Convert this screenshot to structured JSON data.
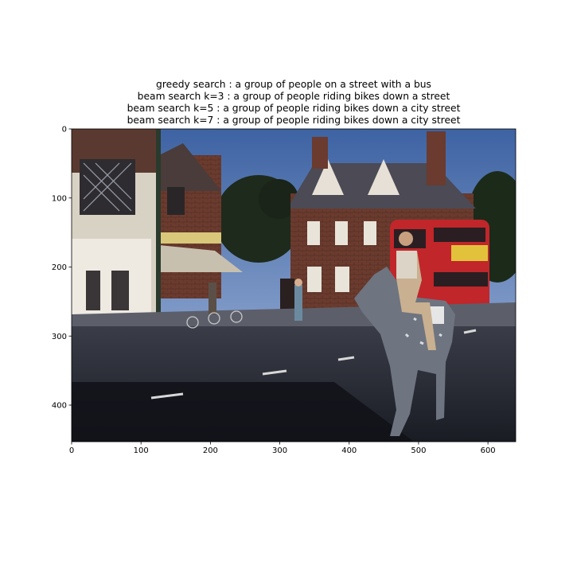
{
  "chart_data": {
    "type": "image",
    "title_lines": [
      "greedy search : a group of people on a street with a bus",
      "beam search k=3 :  a group of people riding bikes down a street",
      "beam search k=5 :  a group of people riding bikes down a city street",
      "beam search k=7 :  a group of people riding bikes down a city street"
    ],
    "xlim": [
      0,
      640
    ],
    "ylim": [
      453,
      0
    ],
    "x_ticks": [
      0,
      100,
      200,
      300,
      400,
      500,
      600
    ],
    "y_ticks": [
      0,
      100,
      200,
      300,
      400
    ],
    "xlabel": "",
    "ylabel": "",
    "grid": false,
    "image_content": "street scene: woman riding a dappled horse, red double-decker bus, brick buildings, people with bicycles"
  },
  "colors": {
    "sky": "#4a6ea8",
    "bus_red": "#c0262a",
    "brick": "#6b3a2c",
    "road": "#2b2f3a"
  }
}
